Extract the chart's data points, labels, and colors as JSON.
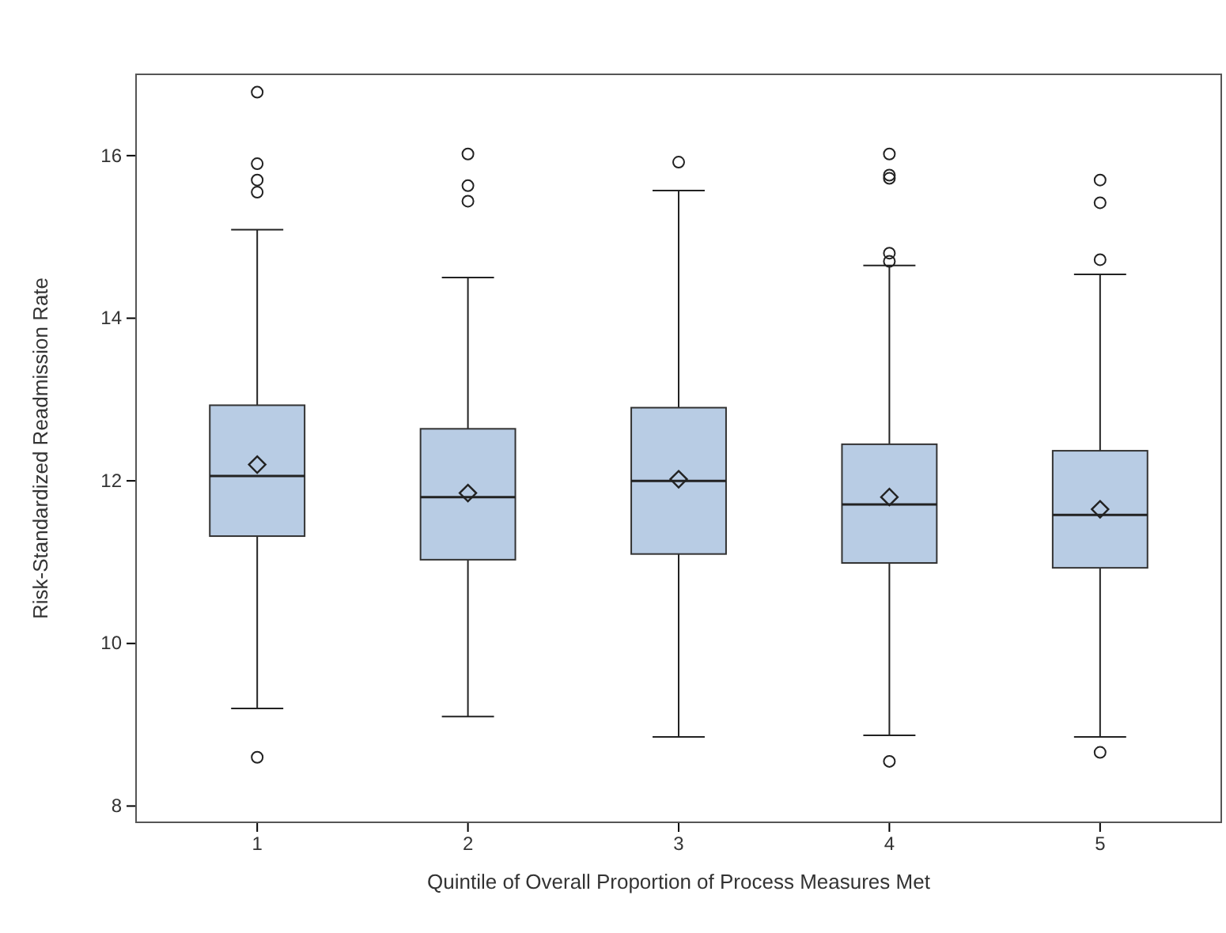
{
  "chart_data": {
    "type": "box",
    "xlabel": "Quintile of Overall Proportion of Process Measures Met",
    "ylabel": "Risk-Standardized Readmission Rate",
    "categories": [
      "1",
      "2",
      "3",
      "4",
      "5"
    ],
    "color": "#b8cce4",
    "ylim": [
      7.8,
      17
    ],
    "yticks": [
      8,
      10,
      12,
      14,
      16
    ],
    "grid": false,
    "boxes": [
      {
        "low": 9.2,
        "q1": 11.32,
        "median": 12.06,
        "q3": 12.93,
        "high": 15.09,
        "mean": 12.2,
        "outliers": [
          16.78,
          15.9,
          15.7,
          15.55,
          8.6
        ]
      },
      {
        "low": 9.1,
        "q1": 11.03,
        "median": 11.8,
        "q3": 12.64,
        "high": 14.5,
        "mean": 11.85,
        "outliers": [
          16.02,
          15.63,
          15.44
        ]
      },
      {
        "low": 8.85,
        "q1": 11.1,
        "median": 12.0,
        "q3": 12.9,
        "high": 15.57,
        "mean": 12.02,
        "outliers": [
          15.92
        ]
      },
      {
        "low": 8.87,
        "q1": 10.99,
        "median": 11.71,
        "q3": 12.45,
        "high": 14.65,
        "mean": 11.8,
        "outliers": [
          16.02,
          15.76,
          15.72,
          14.8,
          14.7,
          8.55
        ]
      },
      {
        "low": 8.85,
        "q1": 10.93,
        "median": 11.58,
        "q3": 12.37,
        "high": 14.54,
        "mean": 11.65,
        "outliers": [
          15.7,
          15.42,
          14.72,
          8.66
        ]
      }
    ]
  }
}
